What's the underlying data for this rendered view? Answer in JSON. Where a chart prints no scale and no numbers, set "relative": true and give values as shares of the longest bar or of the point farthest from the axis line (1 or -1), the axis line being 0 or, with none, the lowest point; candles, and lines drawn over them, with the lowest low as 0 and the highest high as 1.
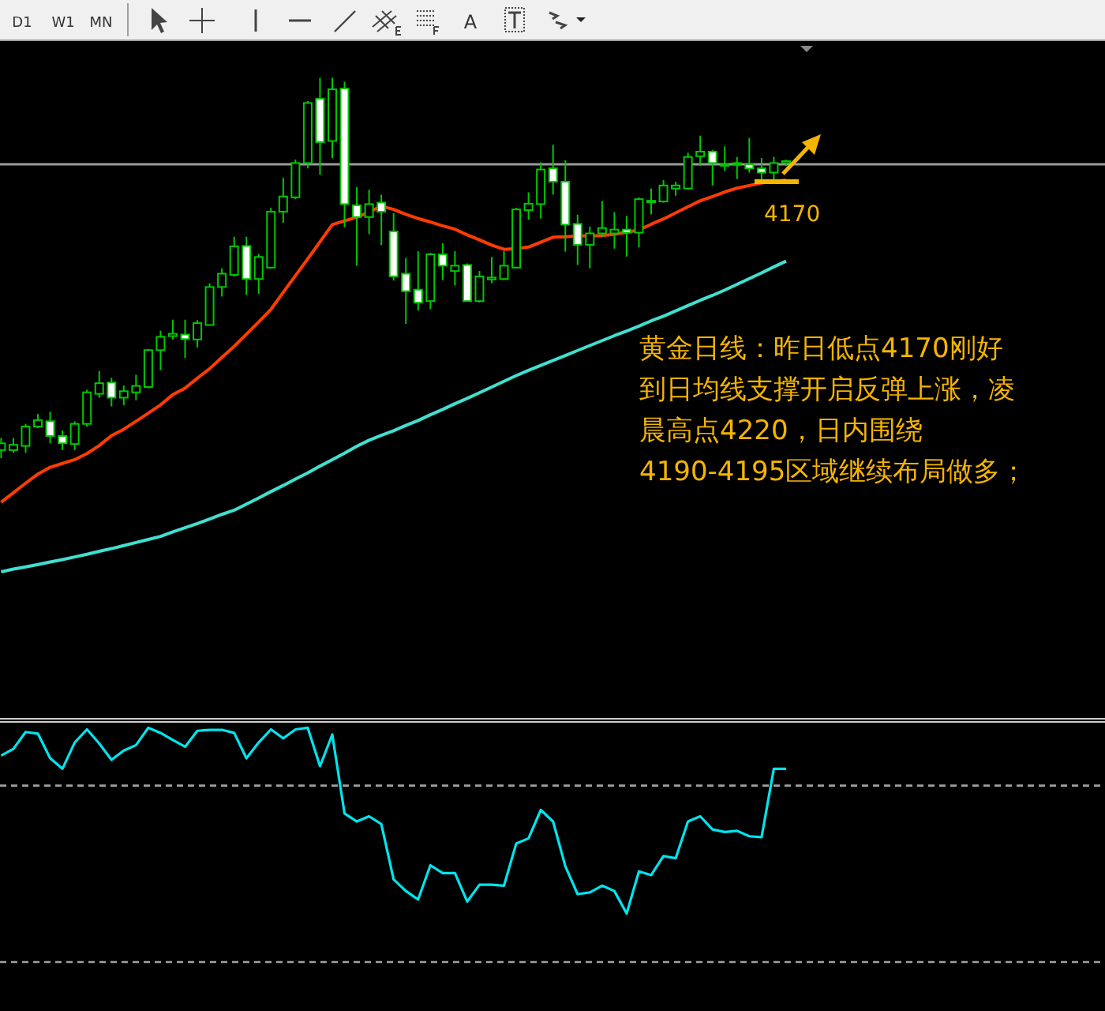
{
  "chart_data": [
    {
      "type": "other",
      "annotations": [
        "D1",
        "W1",
        "MN",
        "A"
      ]
    },
    {
      "type": "candlestick",
      "relative": true,
      "categories": [
        null,
        null,
        null,
        null,
        null,
        null,
        null,
        null,
        null,
        null,
        null,
        null,
        null,
        null,
        null,
        null,
        null,
        null,
        null,
        null,
        null,
        null,
        null,
        null,
        null,
        null,
        null,
        null,
        null,
        null,
        null,
        null,
        null,
        null,
        null,
        null,
        null,
        null,
        null,
        null,
        null,
        null,
        null,
        null,
        null,
        null,
        null,
        null,
        null,
        null,
        null,
        null,
        null,
        null,
        null,
        null,
        null,
        null,
        null,
        null,
        null,
        null,
        null,
        null,
        null
      ],
      "ohlc": [
        [
          0.021,
          0.053,
          0,
          0.039
        ],
        [
          0.021,
          0.053,
          0.014,
          0.035
        ],
        [
          0.032,
          0.09,
          0.014,
          0.083
        ],
        [
          0.083,
          0.116,
          0.079,
          0.1
        ],
        [
          0.097,
          0.122,
          0.039,
          0.058
        ],
        [
          0.058,
          0.073,
          0.021,
          0.039
        ],
        [
          0.037,
          0.097,
          0.021,
          0.09
        ],
        [
          0.09,
          0.18,
          0.083,
          0.173
        ],
        [
          0.169,
          0.229,
          0.159,
          0.197
        ],
        [
          0.199,
          0.211,
          0.136,
          0.159
        ],
        [
          0.159,
          0.191,
          0.139,
          0.176
        ],
        [
          0.173,
          0.219,
          0.152,
          0.19
        ],
        [
          0.187,
          0.287,
          0.184,
          0.284
        ],
        [
          0.284,
          0.335,
          0.231,
          0.319
        ],
        [
          0.321,
          0.364,
          0.312,
          0.327
        ],
        [
          0.325,
          0.364,
          0.263,
          0.313
        ],
        [
          0.312,
          0.363,
          0.291,
          0.355
        ],
        [
          0.35,
          0.46,
          0.35,
          0.45
        ],
        [
          0.45,
          0.499,
          0.425,
          0.485
        ],
        [
          0.482,
          0.582,
          0.478,
          0.557
        ],
        [
          0.558,
          0.582,
          0.429,
          0.471
        ],
        [
          0.471,
          0.537,
          0.432,
          0.529
        ],
        [
          0.501,
          0.658,
          0.499,
          0.648
        ],
        [
          0.648,
          0.737,
          0.619,
          0.688
        ],
        [
          0.686,
          0.785,
          0.681,
          0.776
        ],
        [
          0.776,
          0.939,
          0.762,
          0.934
        ],
        [
          0.945,
          1,
          0.745,
          0.831
        ],
        [
          0.834,
          1,
          0.789,
          0.97
        ],
        [
          0.972,
          0.99,
          0.607,
          0.668
        ],
        [
          0.665,
          0.713,
          0.506,
          0.634
        ],
        [
          0.634,
          0.706,
          0.589,
          0.668
        ],
        [
          0.672,
          0.693,
          0.56,
          0.648
        ],
        [
          0.596,
          0.644,
          0.467,
          0.478
        ],
        [
          0.485,
          0.526,
          0.353,
          0.439
        ],
        [
          0.443,
          0.544,
          0.388,
          0.409
        ],
        [
          0.413,
          0.54,
          0.392,
          0.536
        ],
        [
          0.536,
          0.565,
          0.468,
          0.506
        ],
        [
          0.492,
          0.544,
          0.454,
          0.506
        ],
        [
          0.508,
          0.512,
          0.413,
          0.413
        ],
        [
          0.413,
          0.492,
          0.409,
          0.478
        ],
        [
          0.47,
          0.529,
          0.46,
          0.475
        ],
        [
          0.471,
          0.544,
          0.468,
          0.506
        ],
        [
          0.501,
          0.658,
          0.499,
          0.654
        ],
        [
          0.652,
          0.699,
          0.627,
          0.669
        ],
        [
          0.668,
          0.778,
          0.63,
          0.759
        ],
        [
          0.762,
          0.824,
          0.693,
          0.727
        ],
        [
          0.727,
          0.783,
          0.543,
          0.614
        ],
        [
          0.616,
          0.64,
          0.508,
          0.561
        ],
        [
          0.561,
          0.609,
          0.499,
          0.591
        ],
        [
          0.591,
          0.676,
          0.582,
          0.605
        ],
        [
          0.591,
          0.647,
          0.551,
          0.601
        ],
        [
          0.601,
          0.637,
          0.53,
          0.593
        ],
        [
          0.593,
          0.686,
          0.554,
          0.681
        ],
        [
          0.675,
          0.709,
          0.641,
          0.677
        ],
        [
          0.675,
          0.731,
          0.672,
          0.717
        ],
        [
          0.709,
          0.727,
          0.69,
          0.717
        ],
        [
          0.709,
          0.803,
          0.706,
          0.792
        ],
        [
          0.794,
          0.848,
          0.769,
          0.806
        ],
        [
          0.806,
          0.81,
          0.717,
          0.776
        ],
        [
          0.769,
          0.82,
          0.755,
          0.773
        ],
        [
          0.773,
          0.792,
          0.734,
          0.776
        ],
        [
          0.773,
          0.842,
          0.751,
          0.762
        ],
        [
          0.762,
          0.789,
          0.731,
          0.751
        ],
        [
          0.751,
          0.792,
          0.727,
          0.776
        ],
        [
          0.776,
          0.785,
          0.769,
          0.781
        ]
      ],
      "series": [
        {
          "type": "line",
          "color": "#ff3c00",
          "values": [
            -0.116,
            -0.091,
            -0.066,
            -0.042,
            -0.024,
            -0.014,
            -0.004,
            0.012,
            0.033,
            0.059,
            0.076,
            0.097,
            0.118,
            0.14,
            0.167,
            0.184,
            0.21,
            0.235,
            0.265,
            0.294,
            0.326,
            0.358,
            0.391,
            0.436,
            0.48,
            0.524,
            0.569,
            0.614,
            0.624,
            0.634,
            0.647,
            0.663,
            0.654,
            0.641,
            0.63,
            0.621,
            0.611,
            0.602,
            0.587,
            0.574,
            0.56,
            0.549,
            0.551,
            0.555,
            0.568,
            0.581,
            0.582,
            0.584,
            0.585,
            0.585,
            0.589,
            0.594,
            0.6,
            0.615,
            0.629,
            0.645,
            0.661,
            0.677,
            0.688,
            0.7,
            0.71,
            0.717,
            0.724,
            0.727,
            0.731
          ]
        },
        {
          "type": "line",
          "color": "#40e0d0",
          "values": [
            -0.299,
            -0.292,
            -0.286,
            -0.28,
            -0.273,
            -0.267,
            -0.26,
            -0.253,
            -0.245,
            -0.238,
            -0.23,
            -0.222,
            -0.214,
            -0.206,
            -0.194,
            -0.183,
            -0.172,
            -0.16,
            -0.148,
            -0.137,
            -0.121,
            -0.105,
            -0.088,
            -0.072,
            -0.055,
            -0.039,
            -0.021,
            -0.004,
            0.013,
            0.031,
            0.047,
            0.06,
            0.072,
            0.086,
            0.099,
            0.114,
            0.128,
            0.143,
            0.157,
            0.172,
            0.187,
            0.202,
            0.217,
            0.231,
            0.244,
            0.257,
            0.27,
            0.283,
            0.296,
            0.309,
            0.322,
            0.334,
            0.347,
            0.361,
            0.373,
            0.387,
            0.401,
            0.415,
            0.428,
            0.442,
            0.457,
            0.472,
            0.487,
            0.503,
            0.518
          ]
        }
      ],
      "ref_lines": [
        {
          "axis": "y",
          "value": 0.773,
          "color": "#9a9a9a"
        }
      ],
      "annotations": [
        {
          "text": "4170",
          "y": 0.727
        },
        "黄金日线：昨日低点4170刚好到日均线支撑开启反弹上涨，凌晨高点4220，日内围绕4190-4195区域继续布局做多；"
      ]
    },
    {
      "type": "line",
      "relative": true,
      "categories": [
        null,
        null,
        null,
        null,
        null,
        null,
        null,
        null,
        null,
        null,
        null,
        null,
        null,
        null,
        null,
        null,
        null,
        null,
        null,
        null,
        null,
        null,
        null,
        null,
        null,
        null,
        null,
        null,
        null,
        null,
        null,
        null,
        null,
        null,
        null,
        null,
        null,
        null,
        null,
        null,
        null,
        null,
        null,
        null,
        null,
        null,
        null,
        null,
        null,
        null,
        null,
        null,
        null,
        null,
        null,
        null,
        null,
        null,
        null,
        null,
        null,
        null,
        null,
        null,
        null
      ],
      "series": [
        {
          "color": "#00e5ee",
          "values": [
            0.881,
            0.91,
            0.982,
            0.975,
            0.87,
            0.825,
            0.937,
            0.993,
            0.933,
            0.863,
            0.903,
            0.926,
            1,
            0.978,
            0.948,
            0.919,
            0.987,
            0.991,
            0.991,
            0.978,
            0.87,
            0.937,
            0.993,
            0.955,
            0.993,
            1,
            0.836,
            0.971,
            0.634,
            0.6,
            0.622,
            0.589,
            0.353,
            0.303,
            0.267,
            0.413,
            0.38,
            0.38,
            0.258,
            0.33,
            0.33,
            0.326,
            0.506,
            0.528,
            0.649,
            0.6,
            0.409,
            0.29,
            0.297,
            0.326,
            0.303,
            0.207,
            0.387,
            0.371,
            0.452,
            0.443,
            0.6,
            0.622,
            0.566,
            0.555,
            0.56,
            0.537,
            0.533,
            0.825,
            0.825
          ]
        }
      ],
      "ref_lines": [
        {
          "axis": "y",
          "value": 0.753,
          "color": "#a0a0a0",
          "line_style": "dashed"
        }
      ]
    }
  ]
}
